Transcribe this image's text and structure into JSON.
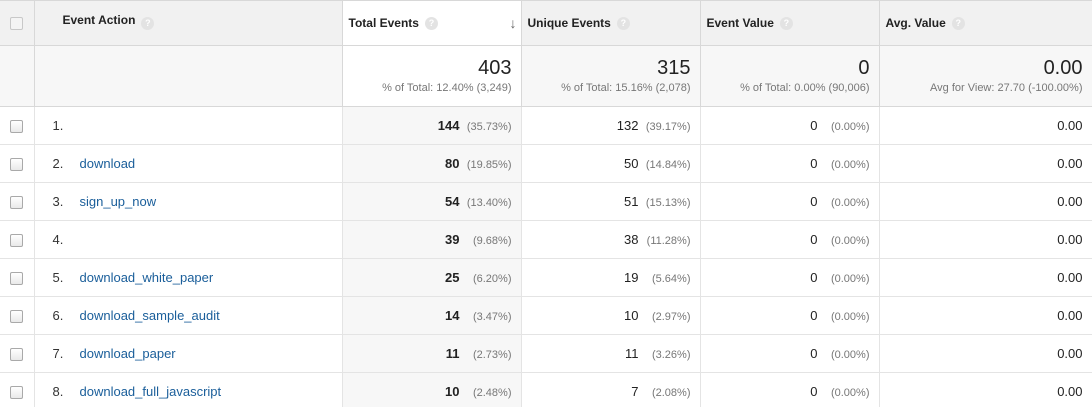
{
  "headers": {
    "event_action": "Event Action",
    "total_events": "Total Events",
    "unique_events": "Unique Events",
    "event_value": "Event Value",
    "avg_value": "Avg. Value",
    "help_glyph": "?",
    "sort_glyph": "↓"
  },
  "summary": {
    "total_events": {
      "value": "403",
      "sub": "% of Total: 12.40% (3,249)"
    },
    "unique_events": {
      "value": "315",
      "sub": "% of Total: 15.16% (2,078)"
    },
    "event_value": {
      "value": "0",
      "sub": "% of Total: 0.00% (90,006)"
    },
    "avg_value": {
      "value": "0.00",
      "sub": "Avg for View: 27.70 (-100.00%)"
    }
  },
  "rows": [
    {
      "rank": "1.",
      "action": "",
      "total": "144",
      "total_pct": "(35.73%)",
      "unique": "132",
      "unique_pct": "(39.17%)",
      "value": "0",
      "value_pct": "(0.00%)",
      "avg": "0.00"
    },
    {
      "rank": "2.",
      "action": "download",
      "total": "80",
      "total_pct": "(19.85%)",
      "unique": "50",
      "unique_pct": "(14.84%)",
      "value": "0",
      "value_pct": "(0.00%)",
      "avg": "0.00"
    },
    {
      "rank": "3.",
      "action": "sign_up_now",
      "total": "54",
      "total_pct": "(13.40%)",
      "unique": "51",
      "unique_pct": "(15.13%)",
      "value": "0",
      "value_pct": "(0.00%)",
      "avg": "0.00"
    },
    {
      "rank": "4.",
      "action": "",
      "total": "39",
      "total_pct": "(9.68%)",
      "unique": "38",
      "unique_pct": "(11.28%)",
      "value": "0",
      "value_pct": "(0.00%)",
      "avg": "0.00"
    },
    {
      "rank": "5.",
      "action": "download_white_paper",
      "total": "25",
      "total_pct": "(6.20%)",
      "unique": "19",
      "unique_pct": "(5.64%)",
      "value": "0",
      "value_pct": "(0.00%)",
      "avg": "0.00"
    },
    {
      "rank": "6.",
      "action": "download_sample_audit",
      "total": "14",
      "total_pct": "(3.47%)",
      "unique": "10",
      "unique_pct": "(2.97%)",
      "value": "0",
      "value_pct": "(0.00%)",
      "avg": "0.00"
    },
    {
      "rank": "7.",
      "action": "download_paper",
      "total": "11",
      "total_pct": "(2.73%)",
      "unique": "11",
      "unique_pct": "(3.26%)",
      "value": "0",
      "value_pct": "(0.00%)",
      "avg": "0.00"
    },
    {
      "rank": "8.",
      "action": "download_full_javascript",
      "total": "10",
      "total_pct": "(2.48%)",
      "unique": "7",
      "unique_pct": "(2.08%)",
      "value": "0",
      "value_pct": "(0.00%)",
      "avg": "0.00"
    }
  ]
}
